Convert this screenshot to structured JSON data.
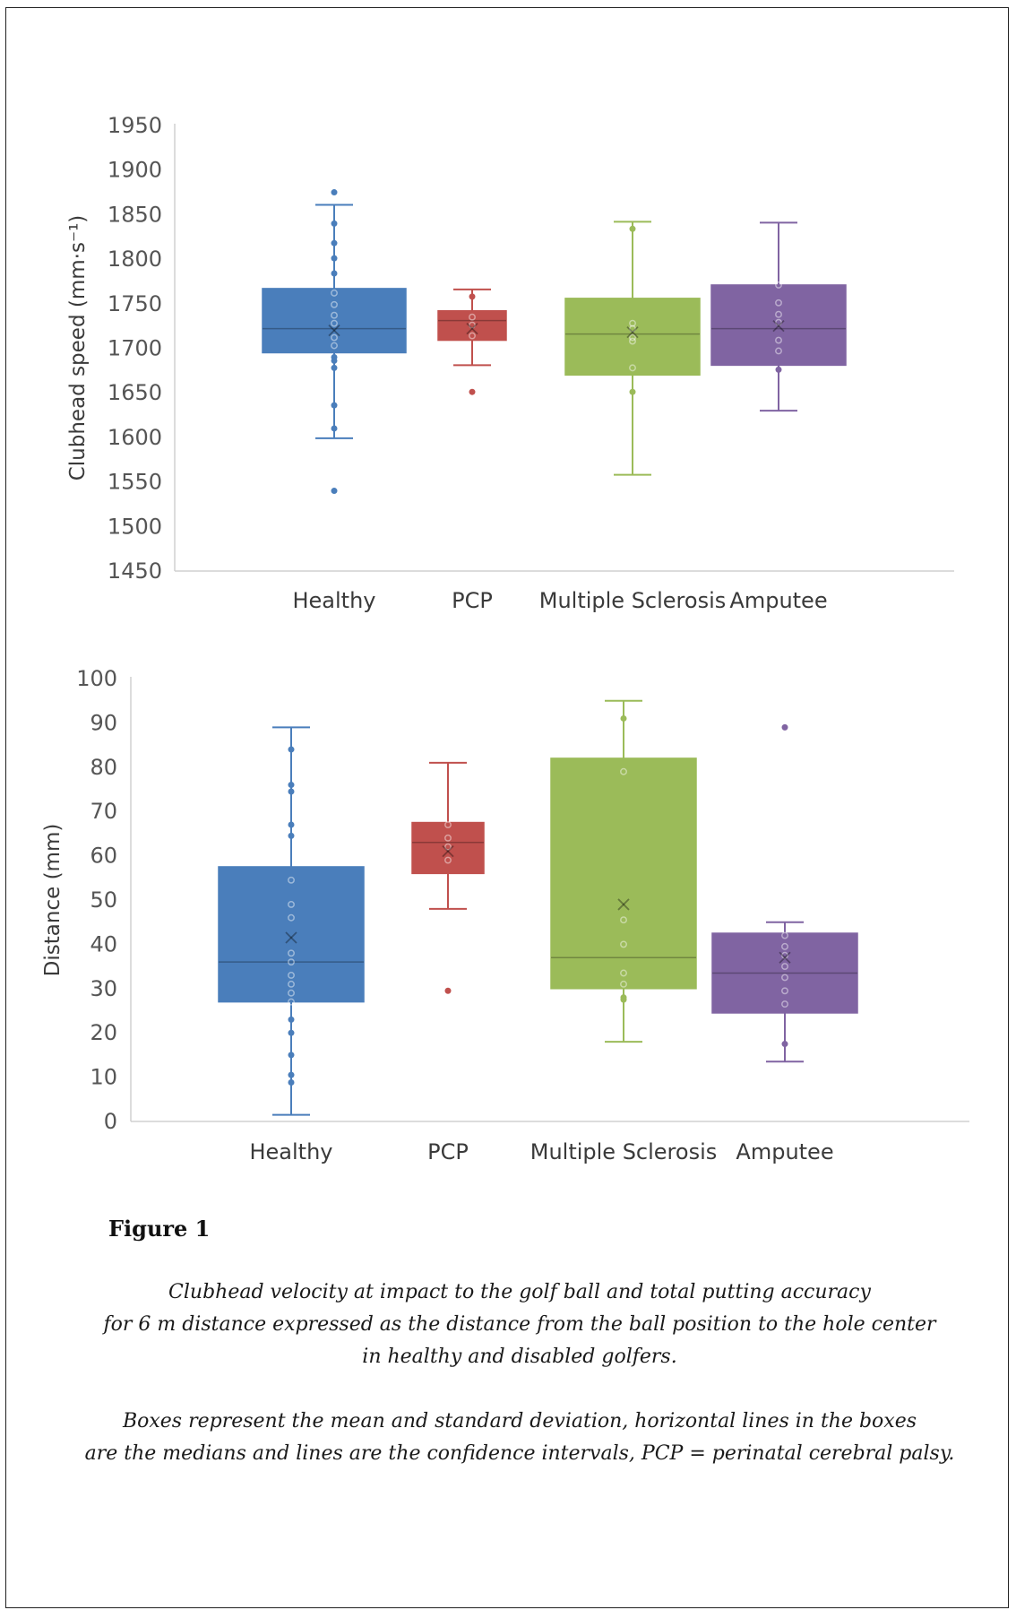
{
  "chart_data": [
    {
      "type": "box",
      "title": "",
      "xlabel": "",
      "ylabel": "Clubhead speed (mm·s⁻¹)",
      "ylim": [
        1450,
        1950
      ],
      "yticks": [
        1450,
        1500,
        1550,
        1600,
        1650,
        1700,
        1750,
        1800,
        1850,
        1900,
        1950
      ],
      "grid": false,
      "categories": [
        "Healthy",
        "PCP",
        "Multiple Sclerosis",
        "Amputee"
      ],
      "series": [
        {
          "category": "Healthy",
          "color": "#4a7ebb",
          "box": [
            1695,
            1767
          ],
          "median": 1722,
          "mean": 1720,
          "whiskers": [
            1599,
            1861
          ],
          "points": [
            1875,
            1840,
            1818,
            1801,
            1784,
            1762,
            1749,
            1737,
            1728,
            1712,
            1703,
            1690,
            1686,
            1678,
            1636,
            1610,
            1540
          ],
          "outliers": [
            1875,
            1540
          ]
        },
        {
          "category": "PCP",
          "color": "#c0504d",
          "box": [
            1709,
            1742
          ],
          "median": 1731,
          "mean": 1722,
          "whiskers": [
            1681,
            1766
          ],
          "points": [
            1758,
            1735,
            1726,
            1714,
            1651
          ],
          "outliers": [
            1651
          ]
        },
        {
          "category": "Multiple Sclerosis",
          "color": "#9bbb59",
          "box": [
            1670,
            1756
          ],
          "median": 1716,
          "mean": 1718,
          "whiskers": [
            1558,
            1842
          ],
          "points": [
            1834,
            1728,
            1722,
            1712,
            1708,
            1678,
            1651
          ],
          "outliers": []
        },
        {
          "category": "Amputee",
          "color": "#8064a2",
          "box": [
            1681,
            1771
          ],
          "median": 1722,
          "mean": 1725,
          "whiskers": [
            1630,
            1841
          ],
          "points": [
            1771,
            1751,
            1738,
            1729,
            1709,
            1697,
            1676
          ],
          "outliers": []
        }
      ]
    },
    {
      "type": "box",
      "title": "",
      "xlabel": "",
      "ylabel": "Distance (mm)",
      "ylim": [
        0,
        100
      ],
      "yticks": [
        0,
        10,
        20,
        30,
        40,
        50,
        60,
        70,
        80,
        90,
        100
      ],
      "grid": false,
      "categories": [
        "Healthy",
        "PCP",
        "Multiple Sclerosis",
        "Amputee"
      ],
      "series": [
        {
          "category": "Healthy",
          "color": "#4a7ebb",
          "box": [
            27,
            57.5
          ],
          "median": 36,
          "mean": 41.5,
          "whiskers": [
            1.5,
            89
          ],
          "points": [
            84,
            76,
            74.5,
            67,
            64.5,
            54.5,
            49,
            46,
            38,
            36,
            33,
            31,
            29,
            27,
            23,
            20,
            15,
            10.5,
            8.8
          ],
          "outliers": []
        },
        {
          "category": "PCP",
          "color": "#c0504d",
          "box": [
            56,
            67.5
          ],
          "median": 63,
          "mean": 61,
          "whiskers": [
            48,
            81
          ],
          "points": [
            67,
            64,
            62,
            59,
            29.5
          ],
          "outliers": [
            29.5
          ]
        },
        {
          "category": "Multiple Sclerosis",
          "color": "#9bbb59",
          "box": [
            30,
            82
          ],
          "median": 37,
          "mean": 49,
          "whiskers": [
            18,
            95
          ],
          "points": [
            91,
            79,
            45.5,
            40,
            33.5,
            31,
            28,
            27.5
          ],
          "outliers": []
        },
        {
          "category": "Amputee",
          "color": "#8064a2",
          "box": [
            24.5,
            42.5
          ],
          "median": 33.5,
          "mean": 37,
          "whiskers": [
            13.5,
            45
          ],
          "points": [
            89,
            42,
            39.5,
            37.5,
            35,
            32.5,
            29.5,
            26.5,
            17.5
          ],
          "outliers": [
            89
          ]
        }
      ]
    }
  ],
  "figure": {
    "label": "Figure 1",
    "caption_lines": [
      "Clubhead velocity at impact to the golf ball and total putting accuracy",
      "for 6 m distance expressed as the distance from the ball position to the hole center",
      "in healthy and disabled golfers."
    ],
    "note_lines": [
      "Boxes represent the mean and standard deviation, horizontal lines in the boxes",
      "are the medians and lines are the confidence intervals, PCP = perinatal cerebral palsy."
    ]
  }
}
